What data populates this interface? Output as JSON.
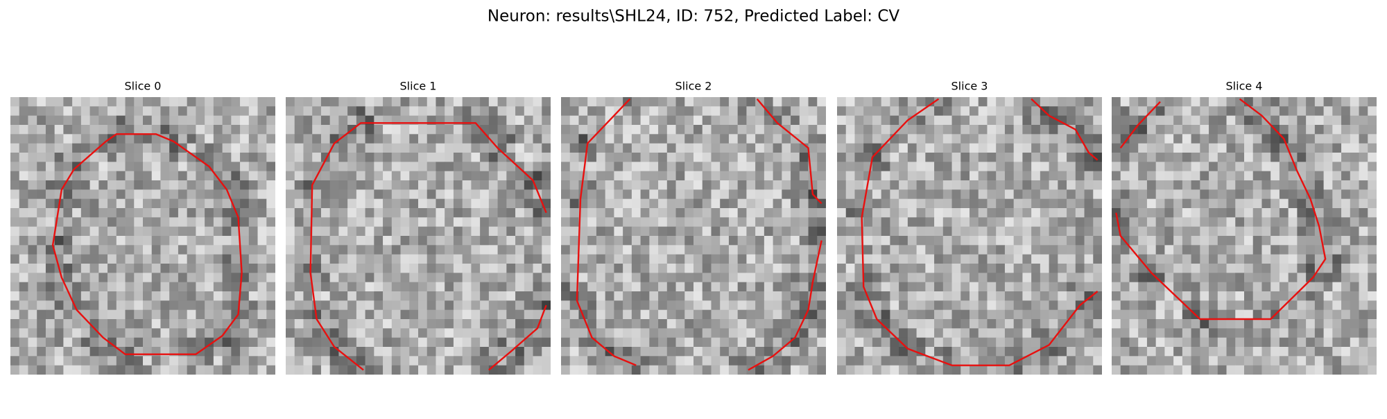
{
  "title": "Neuron: results\\SHL24, ID: 752, Predicted Label: CV",
  "panels": [
    {
      "title": "Slice 0"
    },
    {
      "title": "Slice 1"
    },
    {
      "title": "Slice 2"
    },
    {
      "title": "Slice 3"
    },
    {
      "title": "Slice 4"
    }
  ]
}
